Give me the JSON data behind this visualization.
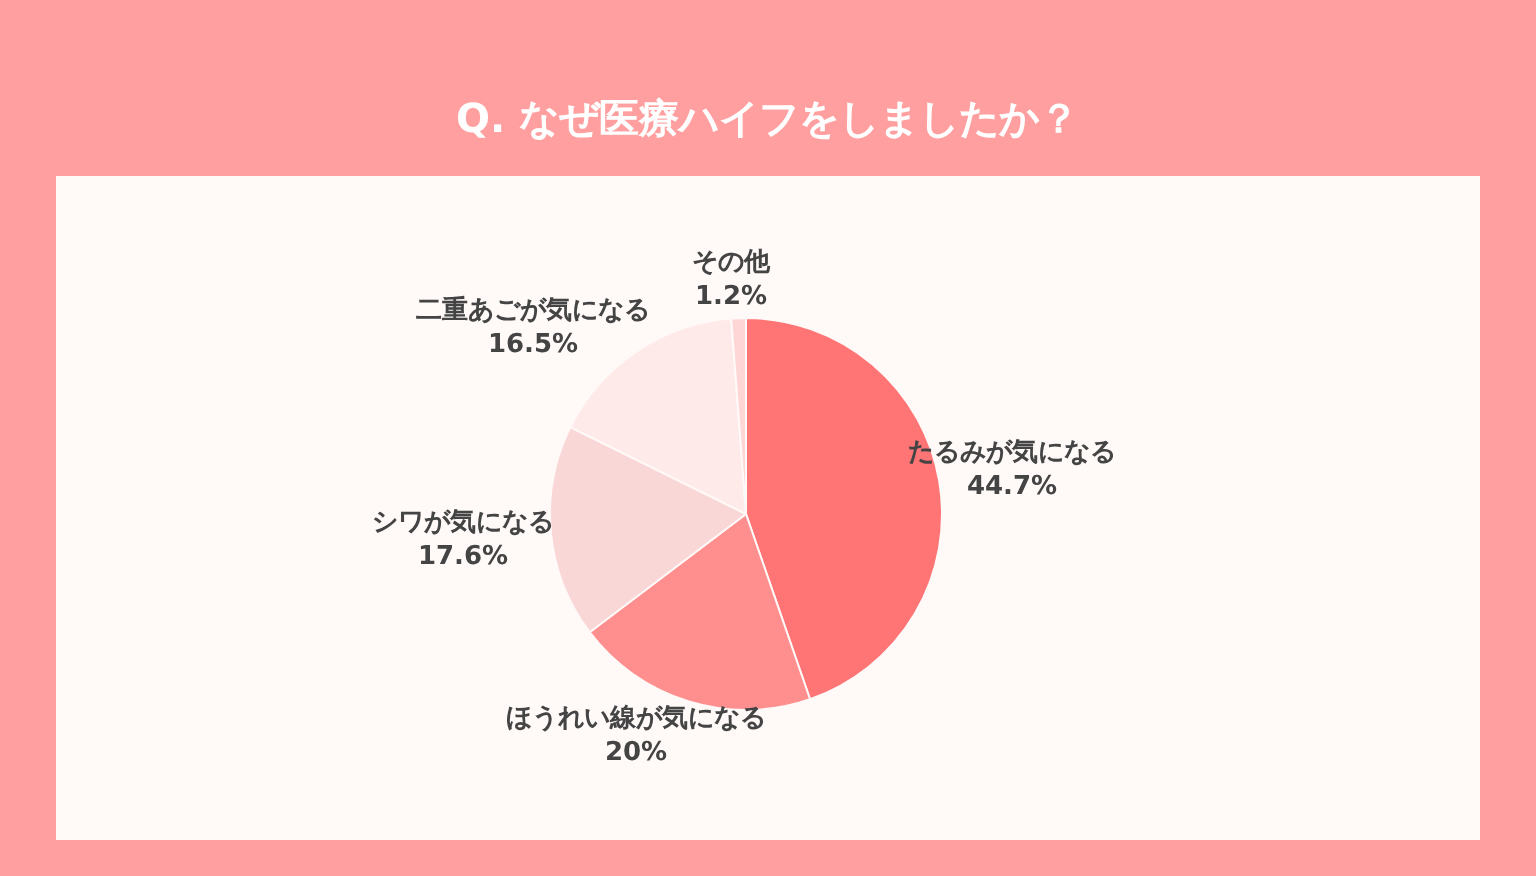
{
  "chart_data": {
    "type": "pie",
    "title": "Q. なぜ医療ハイフをしましたか？",
    "categories": [
      "たるみが気になる",
      "ほうれい線が気になる",
      "シワが気になる",
      "二重あごが気になる",
      "その他"
    ],
    "values": [
      44.7,
      20,
      17.6,
      16.5,
      1.2
    ],
    "value_labels": [
      "44.7%",
      "20%",
      "17.6%",
      "16.5%",
      "1.2%"
    ],
    "colors": [
      "#ff7474",
      "#ff8e8e",
      "#f9d7d7",
      "#ffeaea",
      "#ffd6d6"
    ],
    "legend": false
  }
}
